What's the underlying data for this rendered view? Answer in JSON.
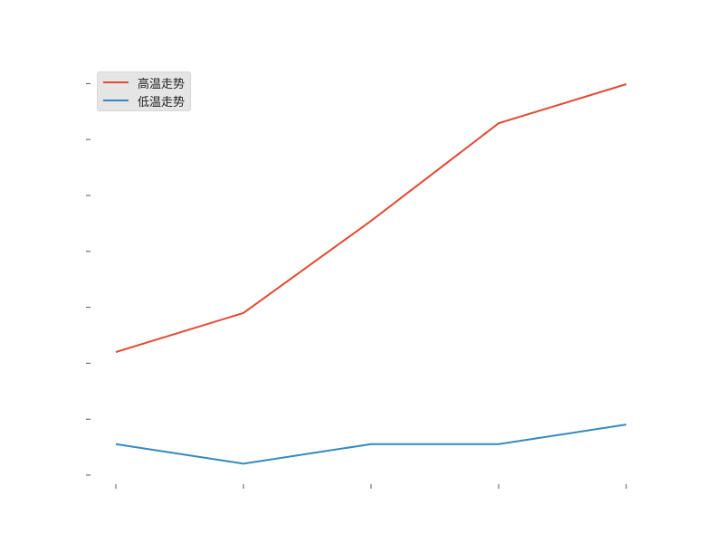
{
  "chart_data": {
    "type": "line",
    "title": "",
    "xlabel": "",
    "ylabel": "",
    "x": [
      0,
      1,
      2,
      3,
      4
    ],
    "ylim": [
      -0.3,
      13.0
    ],
    "yticks": [
      0,
      1.75,
      3.5,
      5.25,
      7.0,
      8.75,
      10.5,
      12.25
    ],
    "grid": false,
    "legend_position": "top-left",
    "series": [
      {
        "name": "高温走势",
        "color": "#e24a33",
        "values": [
          4.3,
          5.7,
          9.0,
          12.5,
          13.9
        ]
      },
      {
        "name": "低温走势",
        "color": "#348abd",
        "values": [
          1.0,
          0.3,
          1.0,
          1.0,
          1.7
        ]
      }
    ]
  }
}
